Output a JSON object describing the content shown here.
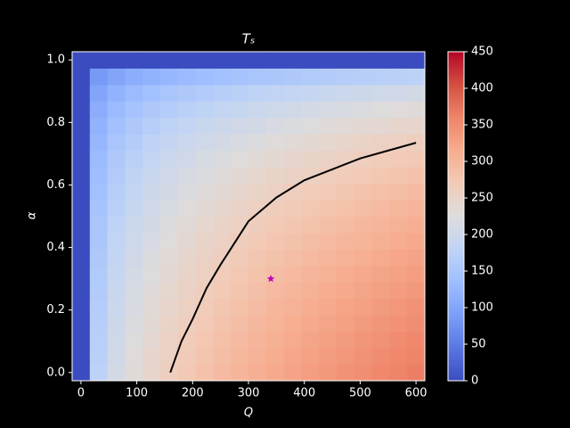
{
  "chart_data": {
    "type": "heatmap",
    "title": "Tₛ",
    "x_label": "Q",
    "y_label": "α",
    "x": [
      0,
      31.58,
      63.16,
      94.74,
      126.32,
      157.89,
      189.47,
      221.05,
      252.63,
      284.21,
      315.79,
      347.37,
      378.95,
      410.53,
      442.11,
      473.68,
      505.26,
      536.84,
      568.42,
      600
    ],
    "y": [
      0,
      0.0526,
      0.1053,
      0.1579,
      0.2105,
      0.2632,
      0.3158,
      0.3684,
      0.4211,
      0.4737,
      0.5263,
      0.5789,
      0.6316,
      0.6842,
      0.7368,
      0.7895,
      0.8421,
      0.8947,
      0.9474,
      1
    ],
    "z": [
      [
        0,
        175,
        208,
        230,
        247,
        261,
        273,
        284,
        294,
        302,
        310,
        318,
        325,
        332,
        338,
        344,
        349,
        355,
        360,
        365
      ],
      [
        0,
        172,
        205,
        227,
        243,
        257,
        269,
        280,
        290,
        298,
        306,
        314,
        321,
        327,
        333,
        339,
        344,
        350,
        355,
        360
      ],
      [
        0,
        170,
        202,
        223,
        240,
        254,
        266,
        276,
        286,
        294,
        302,
        309,
        316,
        323,
        328,
        334,
        340,
        345,
        350,
        355
      ],
      [
        0,
        167,
        199,
        220,
        236,
        250,
        262,
        272,
        281,
        290,
        297,
        304,
        311,
        318,
        323,
        329,
        334,
        340,
        344,
        349
      ],
      [
        0,
        165,
        196,
        216,
        233,
        246,
        257,
        268,
        277,
        285,
        292,
        300,
        306,
        313,
        318,
        324,
        329,
        334,
        339,
        344
      ],
      [
        0,
        162,
        192,
        213,
        229,
        242,
        253,
        263,
        272,
        280,
        287,
        294,
        301,
        307,
        313,
        318,
        323,
        328,
        333,
        338
      ],
      [
        0,
        159,
        189,
        209,
        224,
        237,
        248,
        258,
        267,
        275,
        282,
        289,
        295,
        302,
        307,
        313,
        318,
        323,
        327,
        332
      ],
      [
        0,
        156,
        185,
        205,
        220,
        233,
        243,
        253,
        262,
        269,
        277,
        283,
        290,
        295,
        301,
        306,
        311,
        316,
        321,
        325
      ],
      [
        0,
        152,
        181,
        200,
        215,
        228,
        238,
        248,
        256,
        264,
        271,
        277,
        283,
        289,
        294,
        300,
        304,
        309,
        314,
        318
      ],
      [
        0,
        149,
        177,
        196,
        210,
        222,
        233,
        242,
        250,
        257,
        264,
        271,
        277,
        282,
        287,
        292,
        297,
        302,
        306,
        310
      ],
      [
        0,
        145,
        172,
        191,
        205,
        216,
        227,
        236,
        244,
        251,
        257,
        264,
        269,
        275,
        280,
        285,
        290,
        294,
        298,
        302
      ],
      [
        0,
        141,
        167,
        185,
        199,
        210,
        220,
        229,
        236,
        244,
        250,
        256,
        262,
        267,
        272,
        277,
        281,
        286,
        290,
        294
      ],
      [
        0,
        136,
        162,
        179,
        192,
        203,
        213,
        221,
        229,
        236,
        242,
        248,
        253,
        258,
        263,
        268,
        272,
        276,
        280,
        284
      ],
      [
        0,
        131,
        156,
        172,
        185,
        196,
        205,
        213,
        220,
        227,
        233,
        238,
        243,
        248,
        253,
        257,
        262,
        266,
        269,
        273
      ],
      [
        0,
        125,
        149,
        164,
        177,
        187,
        196,
        203,
        210,
        216,
        222,
        228,
        233,
        237,
        242,
        246,
        250,
        254,
        257,
        261
      ],
      [
        0,
        118,
        141,
        156,
        167,
        177,
        185,
        192,
        199,
        205,
        210,
        215,
        220,
        224,
        229,
        233,
        236,
        240,
        243,
        247
      ],
      [
        0,
        110,
        131,
        145,
        156,
        164,
        172,
        179,
        185,
        191,
        196,
        200,
        205,
        209,
        213,
        216,
        220,
        223,
        227,
        230
      ],
      [
        0,
        99,
        118,
        131,
        141,
        149,
        156,
        162,
        167,
        172,
        177,
        181,
        185,
        189,
        192,
        196,
        199,
        202,
        205,
        208
      ],
      [
        0,
        84,
        99,
        110,
        118,
        125,
        131,
        136,
        141,
        145,
        149,
        152,
        156,
        159,
        162,
        165,
        167,
        170,
        172,
        175
      ],
      [
        0,
        0,
        0,
        0,
        0,
        0,
        0,
        0,
        0,
        0,
        0,
        0,
        0,
        0,
        0,
        0,
        0,
        0,
        0,
        0
      ]
    ],
    "colormap": "coolwarm",
    "clim": [
      0,
      450
    ],
    "colorbar_ticks": [
      0,
      50,
      100,
      150,
      200,
      250,
      300,
      350,
      400,
      450
    ],
    "xlim": [
      -15.79,
      615.79
    ],
    "xticks": [
      0,
      100,
      200,
      300,
      400,
      500,
      600
    ],
    "ylim": [
      -0.0263,
      1.0263
    ],
    "yticks": [
      {
        "value": 0,
        "label": "0.0"
      },
      {
        "value": 0.2,
        "label": "0.2"
      },
      {
        "value": 0.4,
        "label": "0.4"
      },
      {
        "value": 0.6,
        "label": "0.6"
      },
      {
        "value": 0.8,
        "label": "0.8"
      },
      {
        "value": 1,
        "label": "1.0"
      }
    ],
    "contour": {
      "color": "#000000",
      "x": [
        160,
        180,
        200,
        225,
        250,
        300,
        350,
        400,
        450,
        500,
        550,
        600
      ],
      "y": [
        0,
        0.1,
        0.171,
        0.27,
        0.345,
        0.484,
        0.56,
        0.615,
        0.65,
        0.685,
        0.71,
        0.735
      ]
    },
    "marker": {
      "color": "#bf00bf",
      "x": 340,
      "y": 0.3
    }
  }
}
